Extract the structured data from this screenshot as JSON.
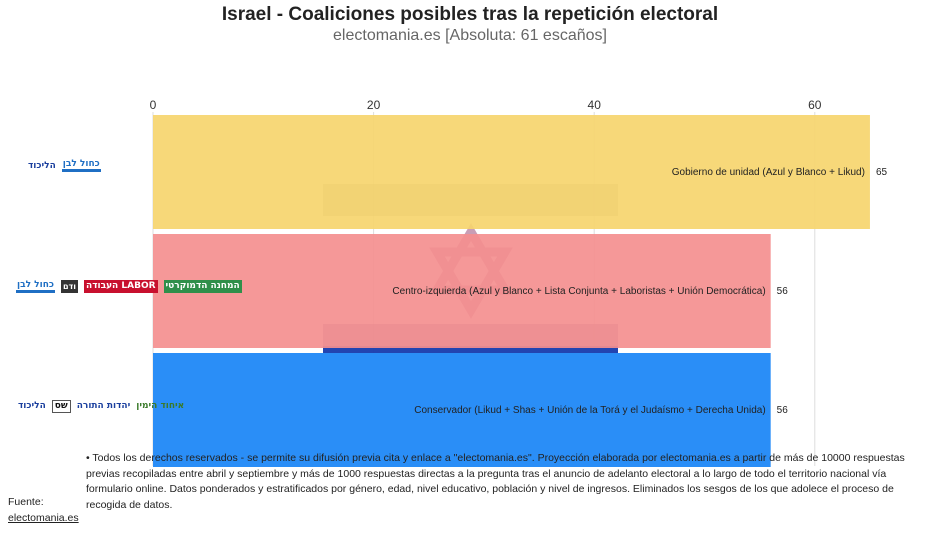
{
  "title": "Israel - Coaliciones posibles tras la repetición electoral",
  "subtitle": "electomania.es [Absoluta: 61 escaños]",
  "chart_data": {
    "type": "bar",
    "orientation": "horizontal",
    "categories": [
      "Gobierno de unidad (Azul y Blanco + Likud)",
      "Centro-izquierda (Azul y Blanco + Lista Conjunta + Laboristas + Unión Democrática)",
      "Conservador (Likud + Shas + Unión de la Torá y el Judaísmo + Derecha Unida)"
    ],
    "values": [
      65,
      56,
      56
    ],
    "colors": [
      "#f6d56e",
      "#f48f8f",
      "#2a8ef7"
    ],
    "xticks": [
      0,
      20,
      40,
      60
    ],
    "xlim": [
      0,
      68
    ],
    "grid": true
  },
  "logos": {
    "row1": [
      {
        "name": "kahol-lavan-logo",
        "text": "כחול לבן"
      },
      {
        "name": "likud-logo",
        "text": "הליכוד"
      }
    ],
    "row2": [
      {
        "name": "democratic-union-logo",
        "text": "המחנה הדמוקרטי"
      },
      {
        "name": "labor-logo",
        "text": "העבודה LABOR"
      },
      {
        "name": "joint-list-logo",
        "text": "ודם"
      },
      {
        "name": "kahol-lavan-logo",
        "text": "כחול לבן"
      }
    ],
    "row3": [
      {
        "name": "yamina-logo",
        "text": "איחוד הימין"
      },
      {
        "name": "utj-logo",
        "text": "יהדות התורה"
      },
      {
        "name": "shas-logo",
        "text": "שס"
      },
      {
        "name": "likud-logo",
        "text": "הליכוד"
      }
    ]
  },
  "footer": {
    "source_label": "Fuente:",
    "source_link": "electomania.es",
    "note": "• Todos los derechos reservados - se permite su difusión previa cita y enlace a \"electomania.es\". Proyección elaborada por electomania.es a partir de más de 10000 respuestas previas recopiladas entre abril y septiembre y más de 1000 respuestas directas a la pregunta tras el anuncio de adelanto electoral a lo largo de todo el territorio nacional vía formulario online. Datos ponderados y estratificados por género, edad, nivel educativo, población y nivel de ingresos. Eliminados los sesgos de los que adolece el proceso de recogida de datos."
  }
}
